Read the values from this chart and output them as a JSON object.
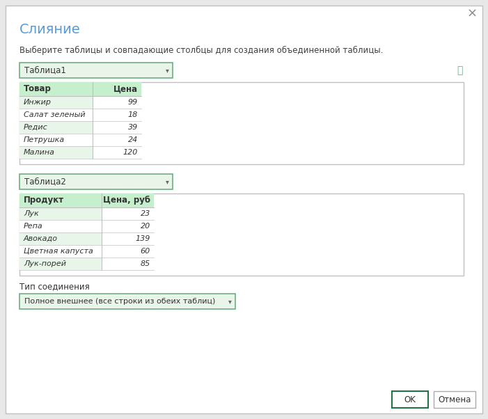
{
  "title": "Слияние",
  "subtitle": "Выберите таблицы и совпадающие столбцы для создания объединенной таблицы.",
  "dropdown1": "Таблица1",
  "dropdown2": "Таблица2",
  "table1_headers": [
    "Товар",
    "Цена"
  ],
  "table1_rows": [
    [
      "Инжир",
      "99"
    ],
    [
      "Салат зеленый",
      "18"
    ],
    [
      "Редис",
      "39"
    ],
    [
      "Петрушка",
      "24"
    ],
    [
      "Малина",
      "120"
    ]
  ],
  "table2_headers": [
    "Продукт",
    "Цена, руб"
  ],
  "table2_rows": [
    [
      "Лук",
      "23"
    ],
    [
      "Репа",
      "20"
    ],
    [
      "Авокадо",
      "139"
    ],
    [
      "Цветная капуста",
      "60"
    ],
    [
      "Лук-порей",
      "85"
    ]
  ],
  "join_label": "Тип соединения",
  "join_value": "Полное внешнее (все строки из обеих таблиц)",
  "btn_ok": "OK",
  "btn_cancel": "Отмена",
  "bg_color": "#e8e8e8",
  "dialog_bg": "#ffffff",
  "header_fill": "#c6efce",
  "row_fill_odd": "#e8f5e9",
  "row_fill_even": "#ffffff",
  "table_border": "#c0c0c0",
  "title_color": "#5b9bd5",
  "subtitle_color": "#404040",
  "text_color": "#333333",
  "dropdown_border": "#70ad83",
  "dropdown_bg": "#eaf5ea",
  "btn_ok_border": "#217346",
  "btn_cancel_border": "#aaaaaa",
  "close_color": "#888888"
}
